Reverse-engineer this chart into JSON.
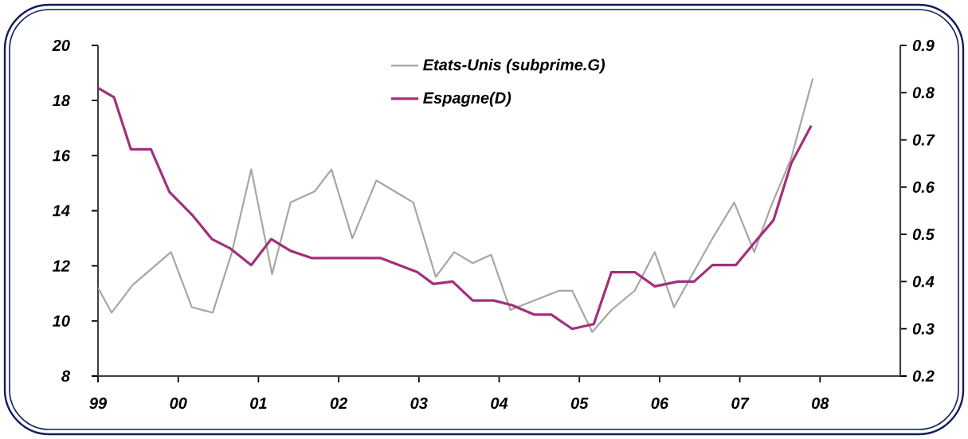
{
  "chart_data": {
    "type": "line",
    "xlim": [
      1999,
      2009
    ],
    "xticks": [
      {
        "value": 1999,
        "label": "99"
      },
      {
        "value": 2000,
        "label": "00"
      },
      {
        "value": 2001,
        "label": "01"
      },
      {
        "value": 2002,
        "label": "02"
      },
      {
        "value": 2003,
        "label": "03"
      },
      {
        "value": 2004,
        "label": "04"
      },
      {
        "value": 2005,
        "label": "05"
      },
      {
        "value": 2006,
        "label": "06"
      },
      {
        "value": 2007,
        "label": "07"
      },
      {
        "value": 2008,
        "label": "08"
      }
    ],
    "ylim": [
      8,
      20
    ],
    "yticks": [
      8,
      10,
      12,
      14,
      16,
      18,
      20
    ],
    "y2lim": [
      0.2,
      0.9
    ],
    "y2ticks": [
      0.2,
      0.3,
      0.4,
      0.5,
      0.6,
      0.7,
      0.8,
      0.9
    ],
    "legend": "top",
    "grid": false,
    "marker": "none",
    "line_style": "solid",
    "series": [
      {
        "name": "Etats-Unis (subprime.G)",
        "color": "#a6a6a6",
        "x": [
          1999.0,
          1999.17,
          1999.43,
          1999.91,
          2000.17,
          2000.43,
          2000.67,
          2000.91,
          2001.17,
          2001.4,
          2001.7,
          2001.91,
          2002.17,
          2002.47,
          2002.93,
          2003.21,
          2003.44,
          2003.67,
          2003.9,
          2004.14,
          2004.75,
          2004.91,
          2005.16,
          2005.4,
          2005.69,
          2005.94,
          2006.18,
          2006.66,
          2006.93,
          2007.18,
          2007.38,
          2007.64,
          2007.91
        ],
        "values": [
          11.2,
          10.3,
          11.3,
          12.5,
          10.5,
          10.3,
          12.5,
          15.5,
          11.7,
          14.3,
          14.7,
          15.5,
          13.0,
          15.1,
          14.3,
          11.6,
          12.5,
          12.1,
          12.4,
          10.4,
          11.1,
          11.1,
          9.6,
          10.4,
          11.1,
          12.5,
          10.5,
          13.0,
          14.3,
          12.5,
          14.1,
          15.9,
          18.8
        ]
      },
      {
        "name": "Espagne(D)",
        "color": "#a3307a",
        "axis": "y2",
        "x": [
          1999.0,
          1999.2,
          1999.41,
          1999.66,
          1999.89,
          2000.18,
          2000.42,
          2000.65,
          2000.91,
          2001.16,
          2001.4,
          2001.66,
          2002.52,
          2002.98,
          2003.18,
          2003.42,
          2003.67,
          2003.93,
          2004.16,
          2004.44,
          2004.65,
          2004.91,
          2005.18,
          2005.4,
          2005.69,
          2005.94,
          2006.23,
          2006.43,
          2006.66,
          2006.95,
          2007.22,
          2007.42,
          2007.64,
          2007.89
        ],
        "values": [
          0.81,
          0.79,
          0.68,
          0.68,
          0.59,
          0.54,
          0.49,
          0.47,
          0.435,
          0.49,
          0.465,
          0.45,
          0.45,
          0.42,
          0.395,
          0.4,
          0.36,
          0.36,
          0.35,
          0.33,
          0.33,
          0.3,
          0.31,
          0.42,
          0.42,
          0.39,
          0.4,
          0.4,
          0.435,
          0.435,
          0.49,
          0.53,
          0.65,
          0.73
        ]
      }
    ]
  }
}
